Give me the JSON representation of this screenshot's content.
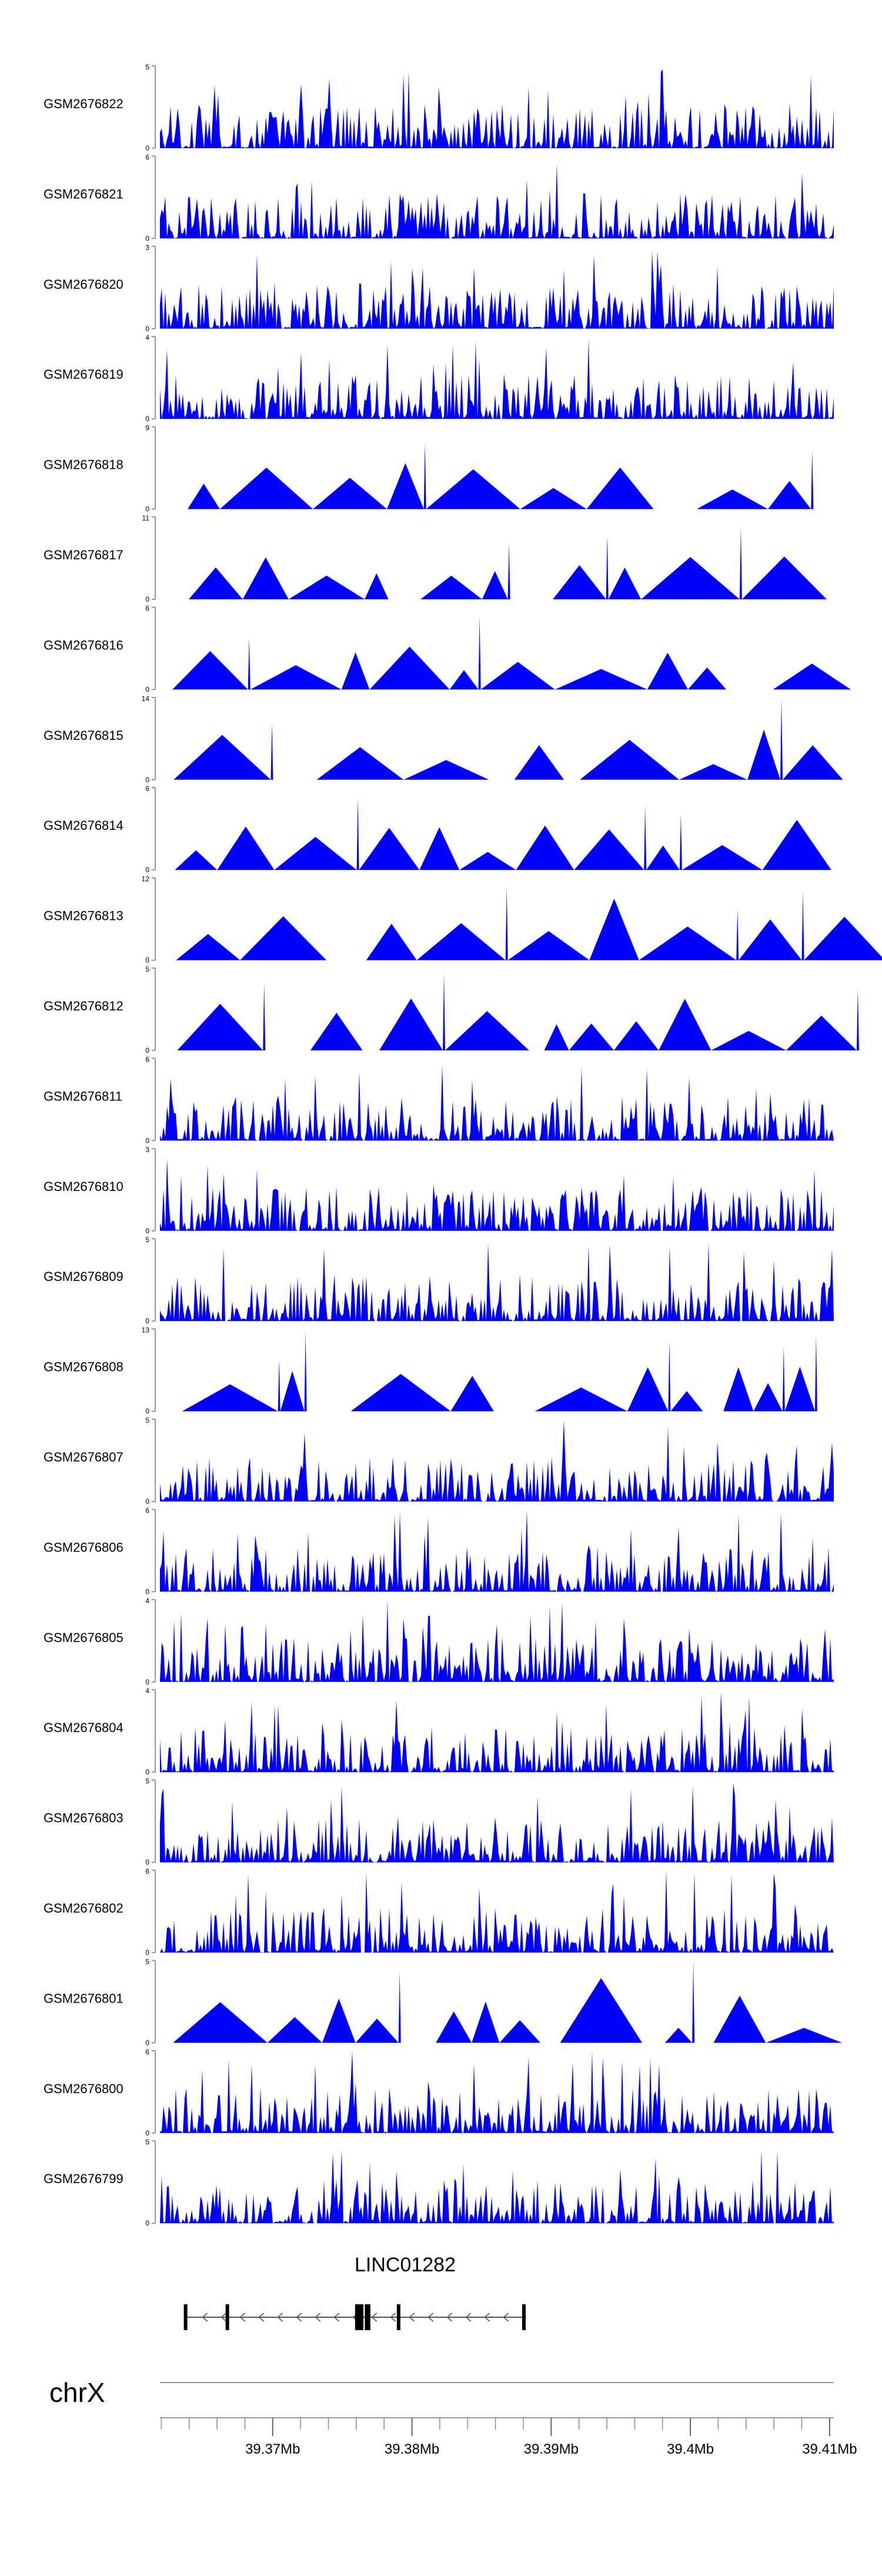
{
  "chart_data": {
    "type": "area",
    "tracks": [
      {
        "name": "GSM2676822",
        "ymax": "5",
        "ymin": "0",
        "fill": "#0000ff"
      },
      {
        "name": "GSM2676821",
        "ymax": "6",
        "ymin": "0",
        "fill": "#0000ff"
      },
      {
        "name": "GSM2676820",
        "ymax": "3",
        "ymin": "0",
        "fill": "#0000ff"
      },
      {
        "name": "GSM2676819",
        "ymax": "4",
        "ymin": "0",
        "fill": "#0000ff"
      },
      {
        "name": "GSM2676818",
        "ymax": "9",
        "ymin": "0",
        "fill": "#0000ff"
      },
      {
        "name": "GSM2676817",
        "ymax": "11",
        "ymin": "0",
        "fill": "#0000ff"
      },
      {
        "name": "GSM2676816",
        "ymax": "6",
        "ymin": "0",
        "fill": "#0000ff"
      },
      {
        "name": "GSM2676815",
        "ymax": "14",
        "ymin": "0",
        "fill": "#0000ff"
      },
      {
        "name": "GSM2676814",
        "ymax": "6",
        "ymin": "0",
        "fill": "#0000ff"
      },
      {
        "name": "GSM2676813",
        "ymax": "12",
        "ymin": "0",
        "fill": "#0000ff"
      },
      {
        "name": "GSM2676812",
        "ymax": "5",
        "ymin": "0",
        "fill": "#0000ff"
      },
      {
        "name": "GSM2676811",
        "ymax": "6",
        "ymin": "0",
        "fill": "#0000ff"
      },
      {
        "name": "GSM2676810",
        "ymax": "3",
        "ymin": "0",
        "fill": "#0000ff"
      },
      {
        "name": "GSM2676809",
        "ymax": "5",
        "ymin": "0",
        "fill": "#0000ff"
      },
      {
        "name": "GSM2676808",
        "ymax": "13",
        "ymin": "0",
        "fill": "#0000ff"
      },
      {
        "name": "GSM2676807",
        "ymax": "5",
        "ymin": "0",
        "fill": "#0000ff"
      },
      {
        "name": "GSM2676806",
        "ymax": "6",
        "ymin": "0",
        "fill": "#0000ff"
      },
      {
        "name": "GSM2676805",
        "ymax": "4",
        "ymin": "0",
        "fill": "#0000ff"
      },
      {
        "name": "GSM2676804",
        "ymax": "4",
        "ymin": "0",
        "fill": "#0000ff"
      },
      {
        "name": "GSM2676803",
        "ymax": "5",
        "ymin": "0",
        "fill": "#0000ff"
      },
      {
        "name": "GSM2676802",
        "ymax": "6",
        "ymin": "0",
        "fill": "#0000ff"
      },
      {
        "name": "GSM2676801",
        "ymax": "5",
        "ymin": "0",
        "fill": "#0000ff"
      },
      {
        "name": "GSM2676800",
        "ymax": "6",
        "ymin": "0",
        "fill": "#0000ff"
      },
      {
        "name": "GSM2676799",
        "ymax": "5",
        "ymin": "0",
        "fill": "#0000ff"
      }
    ],
    "gene": {
      "name": "LINC01282",
      "strand": "-",
      "start_mb": 39.3637,
      "end_mb": 39.3882,
      "exons_mb": [
        [
          39.3637,
          39.3639
        ],
        [
          39.3667,
          39.3669
        ],
        [
          39.376,
          39.3766
        ],
        [
          39.3767,
          39.3771
        ],
        [
          39.379,
          39.3792
        ],
        [
          39.388,
          39.3882
        ]
      ]
    },
    "chromosome": "chrX",
    "x_axis": {
      "xlim_mb": [
        39.3619,
        39.4103
      ],
      "ticks_mb": [
        39.37,
        39.38,
        39.39,
        39.4,
        39.41
      ],
      "tick_labels": [
        "39.37Mb",
        "39.38Mb",
        "39.39Mb",
        "39.4Mb",
        "39.41Mb"
      ],
      "minor_tick_mb": 0.002
    }
  }
}
